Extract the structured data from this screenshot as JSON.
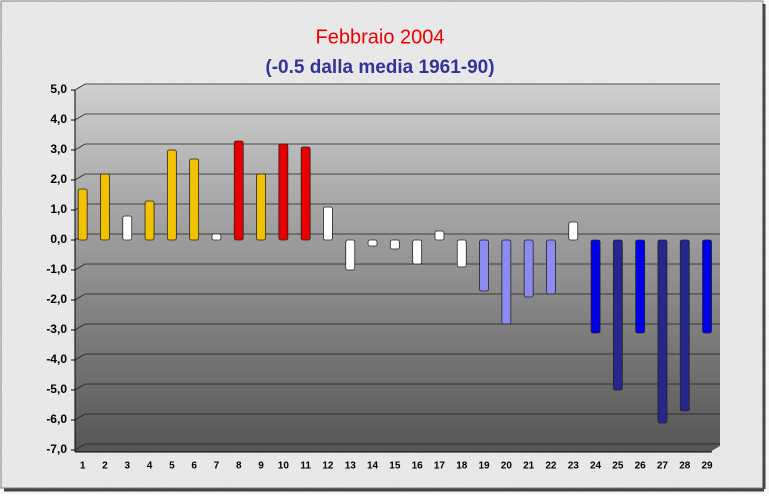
{
  "chart_data": {
    "type": "bar",
    "title": "Febbraio 2004",
    "subtitle": "(-0.5 dalla media 1961-90)",
    "categories": [
      "1",
      "2",
      "3",
      "4",
      "5",
      "6",
      "7",
      "8",
      "9",
      "10",
      "11",
      "12",
      "13",
      "14",
      "15",
      "16",
      "17",
      "18",
      "19",
      "20",
      "21",
      "22",
      "23",
      "24",
      "25",
      "26",
      "27",
      "28",
      "29"
    ],
    "values": [
      1.7,
      2.2,
      0.8,
      1.3,
      3.0,
      2.7,
      0.2,
      3.3,
      2.2,
      3.2,
      3.1,
      1.1,
      -1.0,
      -0.2,
      -0.3,
      -0.8,
      0.3,
      -0.9,
      -1.7,
      -2.8,
      -1.9,
      -1.8,
      0.6,
      -3.1,
      -5.0,
      -3.1,
      -6.1,
      -5.7,
      -3.1
    ],
    "colors": [
      "#f2c200",
      "#f2c200",
      "#ffffff",
      "#f2c200",
      "#f2c200",
      "#f2c200",
      "#ffffff",
      "#e80000",
      "#f2c200",
      "#e80000",
      "#e80000",
      "#ffffff",
      "#ffffff",
      "#ffffff",
      "#ffffff",
      "#ffffff",
      "#ffffff",
      "#ffffff",
      "#8c8cf0",
      "#8c8cf0",
      "#8c8cf0",
      "#8c8cf0",
      "#ffffff",
      "#0000e6",
      "#26268c",
      "#0000e6",
      "#26268c",
      "#26268c",
      "#0000e6"
    ],
    "ylim": [
      -7,
      5
    ],
    "yticks": [
      {
        "value": -7,
        "label": "-7,0"
      },
      {
        "value": -6,
        "label": "-6,0"
      },
      {
        "value": -5,
        "label": "-5,0"
      },
      {
        "value": -4,
        "label": "-4,0"
      },
      {
        "value": -3,
        "label": "-3,0"
      },
      {
        "value": -2,
        "label": "-2,0"
      },
      {
        "value": -1,
        "label": "-1,0"
      },
      {
        "value": 0,
        "label": "0,0"
      },
      {
        "value": 1,
        "label": "1,0"
      },
      {
        "value": 2,
        "label": "2,0"
      },
      {
        "value": 3,
        "label": "3,0"
      },
      {
        "value": 4,
        "label": "4,0"
      },
      {
        "value": 5,
        "label": "5,0"
      }
    ],
    "grid": true
  }
}
